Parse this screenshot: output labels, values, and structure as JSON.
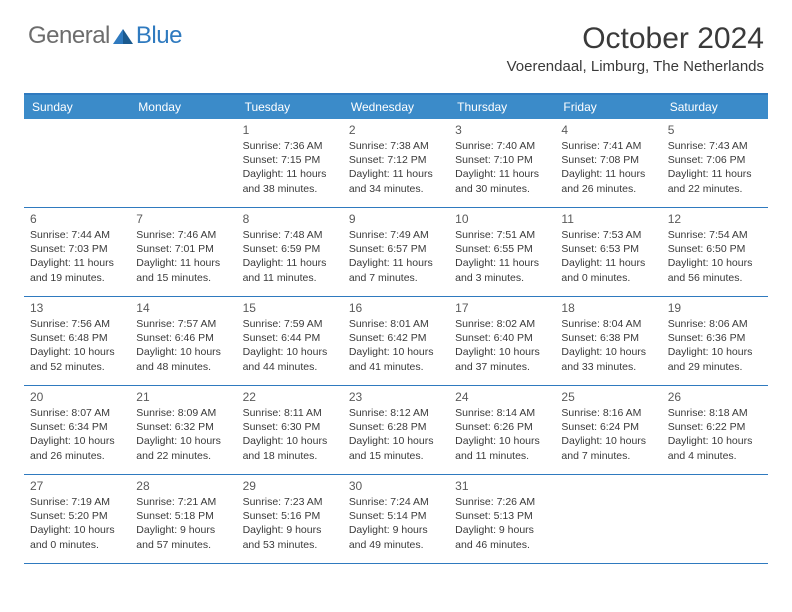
{
  "brand": {
    "part1": "General",
    "part2": "Blue"
  },
  "title": "October 2024",
  "location": "Voerendaal, Limburg, The Netherlands",
  "colors": {
    "headerBar": "#3b8bc9",
    "rule": "#2f7abf",
    "text": "#3a3a3a",
    "logoGray": "#6d6d6d",
    "logoBlue": "#2f7abf",
    "background": "#ffffff"
  },
  "dayNames": [
    "Sunday",
    "Monday",
    "Tuesday",
    "Wednesday",
    "Thursday",
    "Friday",
    "Saturday"
  ],
  "weeks": [
    [
      null,
      null,
      {
        "n": "1",
        "sr": "7:36 AM",
        "ss": "7:15 PM",
        "dh": "11",
        "dm": "38"
      },
      {
        "n": "2",
        "sr": "7:38 AM",
        "ss": "7:12 PM",
        "dh": "11",
        "dm": "34"
      },
      {
        "n": "3",
        "sr": "7:40 AM",
        "ss": "7:10 PM",
        "dh": "11",
        "dm": "30"
      },
      {
        "n": "4",
        "sr": "7:41 AM",
        "ss": "7:08 PM",
        "dh": "11",
        "dm": "26"
      },
      {
        "n": "5",
        "sr": "7:43 AM",
        "ss": "7:06 PM",
        "dh": "11",
        "dm": "22"
      }
    ],
    [
      {
        "n": "6",
        "sr": "7:44 AM",
        "ss": "7:03 PM",
        "dh": "11",
        "dm": "19"
      },
      {
        "n": "7",
        "sr": "7:46 AM",
        "ss": "7:01 PM",
        "dh": "11",
        "dm": "15"
      },
      {
        "n": "8",
        "sr": "7:48 AM",
        "ss": "6:59 PM",
        "dh": "11",
        "dm": "11"
      },
      {
        "n": "9",
        "sr": "7:49 AM",
        "ss": "6:57 PM",
        "dh": "11",
        "dm": "7"
      },
      {
        "n": "10",
        "sr": "7:51 AM",
        "ss": "6:55 PM",
        "dh": "11",
        "dm": "3"
      },
      {
        "n": "11",
        "sr": "7:53 AM",
        "ss": "6:53 PM",
        "dh": "11",
        "dm": "0"
      },
      {
        "n": "12",
        "sr": "7:54 AM",
        "ss": "6:50 PM",
        "dh": "10",
        "dm": "56"
      }
    ],
    [
      {
        "n": "13",
        "sr": "7:56 AM",
        "ss": "6:48 PM",
        "dh": "10",
        "dm": "52"
      },
      {
        "n": "14",
        "sr": "7:57 AM",
        "ss": "6:46 PM",
        "dh": "10",
        "dm": "48"
      },
      {
        "n": "15",
        "sr": "7:59 AM",
        "ss": "6:44 PM",
        "dh": "10",
        "dm": "44"
      },
      {
        "n": "16",
        "sr": "8:01 AM",
        "ss": "6:42 PM",
        "dh": "10",
        "dm": "41"
      },
      {
        "n": "17",
        "sr": "8:02 AM",
        "ss": "6:40 PM",
        "dh": "10",
        "dm": "37"
      },
      {
        "n": "18",
        "sr": "8:04 AM",
        "ss": "6:38 PM",
        "dh": "10",
        "dm": "33"
      },
      {
        "n": "19",
        "sr": "8:06 AM",
        "ss": "6:36 PM",
        "dh": "10",
        "dm": "29"
      }
    ],
    [
      {
        "n": "20",
        "sr": "8:07 AM",
        "ss": "6:34 PM",
        "dh": "10",
        "dm": "26"
      },
      {
        "n": "21",
        "sr": "8:09 AM",
        "ss": "6:32 PM",
        "dh": "10",
        "dm": "22"
      },
      {
        "n": "22",
        "sr": "8:11 AM",
        "ss": "6:30 PM",
        "dh": "10",
        "dm": "18"
      },
      {
        "n": "23",
        "sr": "8:12 AM",
        "ss": "6:28 PM",
        "dh": "10",
        "dm": "15"
      },
      {
        "n": "24",
        "sr": "8:14 AM",
        "ss": "6:26 PM",
        "dh": "10",
        "dm": "11"
      },
      {
        "n": "25",
        "sr": "8:16 AM",
        "ss": "6:24 PM",
        "dh": "10",
        "dm": "7"
      },
      {
        "n": "26",
        "sr": "8:18 AM",
        "ss": "6:22 PM",
        "dh": "10",
        "dm": "4"
      }
    ],
    [
      {
        "n": "27",
        "sr": "7:19 AM",
        "ss": "5:20 PM",
        "dh": "10",
        "dm": "0"
      },
      {
        "n": "28",
        "sr": "7:21 AM",
        "ss": "5:18 PM",
        "dh": "9",
        "dm": "57"
      },
      {
        "n": "29",
        "sr": "7:23 AM",
        "ss": "5:16 PM",
        "dh": "9",
        "dm": "53"
      },
      {
        "n": "30",
        "sr": "7:24 AM",
        "ss": "5:14 PM",
        "dh": "9",
        "dm": "49"
      },
      {
        "n": "31",
        "sr": "7:26 AM",
        "ss": "5:13 PM",
        "dh": "9",
        "dm": "46"
      },
      null,
      null
    ]
  ],
  "labels": {
    "sunrise": "Sunrise: ",
    "sunset": "Sunset: ",
    "daylight1": "Daylight: ",
    "daylight2": " hours",
    "daylight3": "and ",
    "daylight4": " minutes."
  }
}
